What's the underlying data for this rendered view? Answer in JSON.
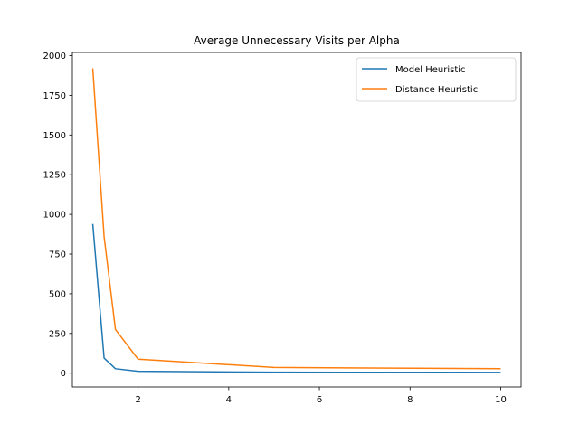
{
  "chart_data": {
    "type": "line",
    "title": "Average Unnecessary Visits per Alpha",
    "xlabel": "",
    "ylabel": "",
    "xlim": [
      0.55,
      10.45
    ],
    "ylim": [
      -87,
      2020
    ],
    "xticks": [
      2,
      4,
      6,
      8,
      10
    ],
    "yticks": [
      0,
      250,
      500,
      750,
      1000,
      1250,
      1500,
      1750,
      2000
    ],
    "grid": false,
    "legend_position": "top-right",
    "series": [
      {
        "name": "Model Heuristic",
        "color": "#1f77b4",
        "x": [
          1,
          1.25,
          1.5,
          2,
          5,
          10
        ],
        "y": [
          940,
          95,
          28,
          12,
          6,
          5
        ]
      },
      {
        "name": "Distance Heuristic",
        "color": "#ff7f0e",
        "x": [
          1,
          1.25,
          1.5,
          2,
          5,
          10
        ],
        "y": [
          1920,
          860,
          275,
          88,
          36,
          28
        ]
      }
    ]
  }
}
